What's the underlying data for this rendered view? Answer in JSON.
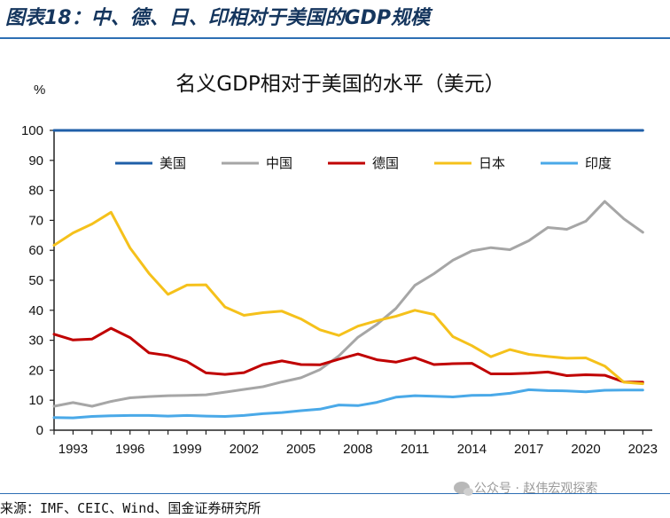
{
  "figure": {
    "title": "图表18：中、德、日、印相对于美国的GDP规模",
    "source": "来源：IMF、CEIC、Wind、国金证券研究所",
    "watermark": "公众号 · 赵伟宏观探索"
  },
  "chart_data": {
    "type": "line",
    "title": "名义GDP相对于美国的水平（美元）",
    "ylabel": "%",
    "xlabel": "",
    "ylim": [
      0,
      100
    ],
    "yticks": [
      0,
      10,
      20,
      30,
      40,
      50,
      60,
      70,
      80,
      90,
      100
    ],
    "xlim": [
      1992,
      2023.5
    ],
    "xticks": [
      1993,
      1996,
      1999,
      2002,
      2005,
      2008,
      2011,
      2014,
      2017,
      2020,
      2023
    ],
    "grid": false,
    "legend_position": "top",
    "x": [
      1992,
      1993,
      1994,
      1995,
      1996,
      1997,
      1998,
      1999,
      2000,
      2001,
      2002,
      2003,
      2004,
      2005,
      2006,
      2007,
      2008,
      2009,
      2010,
      2011,
      2012,
      2013,
      2014,
      2015,
      2016,
      2017,
      2018,
      2019,
      2020,
      2021,
      2022,
      2023
    ],
    "series": [
      {
        "name": "美国",
        "color": "#1f5fa8",
        "values": [
          100,
          100,
          100,
          100,
          100,
          100,
          100,
          100,
          100,
          100,
          100,
          100,
          100,
          100,
          100,
          100,
          100,
          100,
          100,
          100,
          100,
          100,
          100,
          100,
          100,
          100,
          100,
          100,
          100,
          100,
          100,
          100
        ]
      },
      {
        "name": "中国",
        "color": "#a6a6a6",
        "values": [
          8,
          9.2,
          8,
          9.6,
          10.8,
          11.2,
          11.5,
          11.6,
          11.8,
          12.7,
          13.6,
          14.5,
          16.1,
          17.5,
          20.2,
          24.8,
          31,
          35.3,
          40.6,
          48.3,
          52.2,
          56.7,
          59.8,
          60.9,
          60.2,
          63.2,
          67.6,
          67,
          69.7,
          76.3,
          70.5,
          66
        ]
      },
      {
        "name": "德国",
        "color": "#c00000",
        "values": [
          32,
          30.1,
          30.4,
          34,
          30.9,
          25.8,
          24.9,
          22.9,
          19.1,
          18.6,
          19.2,
          21.9,
          23.1,
          21.9,
          21.8,
          23.7,
          25.4,
          23.5,
          22.7,
          24.2,
          21.9,
          22.2,
          22.3,
          18.8,
          18.8,
          19,
          19.4,
          18.2,
          18.5,
          18.3,
          16.1,
          16
        ]
      },
      {
        "name": "日本",
        "color": "#f5c11b",
        "values": [
          61.7,
          65.8,
          68.8,
          72.7,
          60.8,
          52.3,
          45.3,
          48.4,
          48.5,
          41.1,
          38.3,
          39.2,
          39.7,
          37.1,
          33.5,
          31.6,
          34.7,
          36.5,
          38,
          40,
          38.6,
          31.2,
          28.2,
          24.5,
          26.9,
          25.3,
          24.6,
          24,
          24.1,
          21.4,
          16,
          15.5
        ]
      },
      {
        "name": "印度",
        "color": "#4aa9e8",
        "values": [
          4.2,
          4.1,
          4.6,
          4.8,
          4.9,
          4.9,
          4.7,
          4.9,
          4.7,
          4.6,
          4.9,
          5.5,
          5.9,
          6.5,
          7,
          8.4,
          8.2,
          9.3,
          11,
          11.5,
          11.3,
          11.1,
          11.6,
          11.7,
          12.3,
          13.5,
          13.2,
          13.1,
          12.8,
          13.3,
          13.4,
          13.4
        ]
      }
    ]
  }
}
